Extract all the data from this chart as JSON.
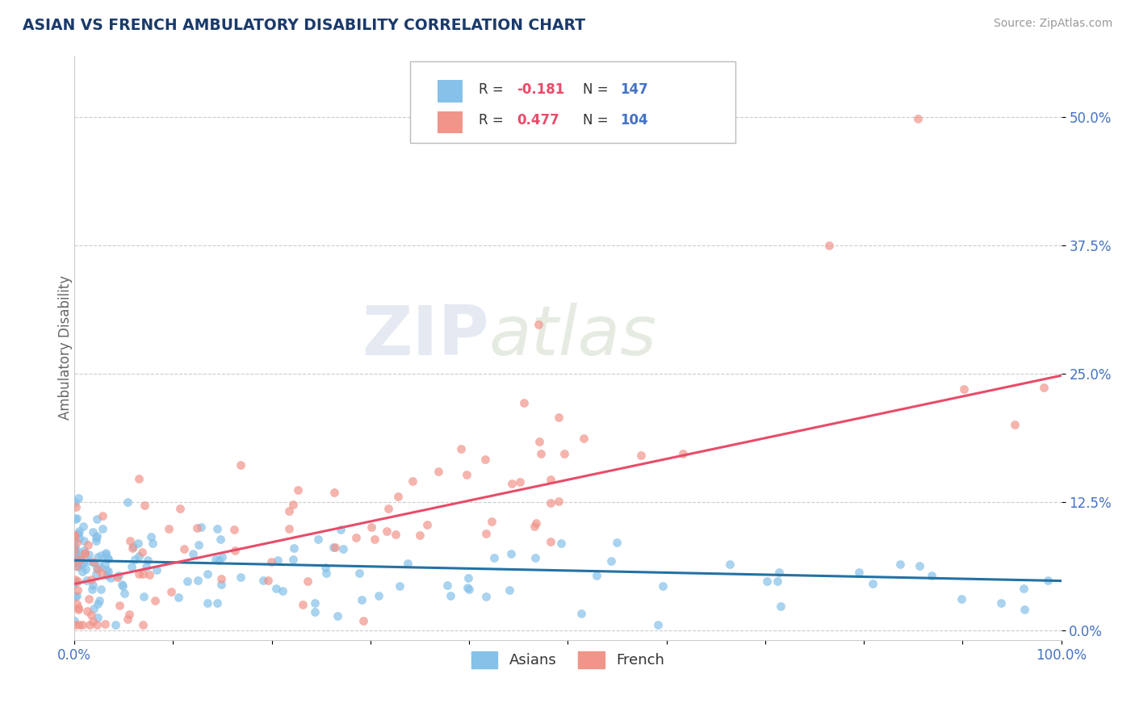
{
  "title": "ASIAN VS FRENCH AMBULATORY DISABILITY CORRELATION CHART",
  "source": "Source: ZipAtlas.com",
  "ylabel": "Ambulatory Disability",
  "asian_R": -0.181,
  "asian_N": 147,
  "french_R": 0.477,
  "french_N": 104,
  "asian_color": "#85C1E9",
  "french_color": "#F1948A",
  "asian_line_color": "#2471A3",
  "french_line_color": "#E74C6A",
  "title_color": "#1A3A6B",
  "source_color": "#999999",
  "background_color": "#FFFFFF",
  "grid_color": "#CCCCCC",
  "xlim": [
    0.0,
    1.0
  ],
  "ylim": [
    -0.01,
    0.56
  ],
  "yticks": [
    0.0,
    0.125,
    0.25,
    0.375,
    0.5
  ],
  "ytick_labels": [
    "0.0%",
    "12.5%",
    "25.0%",
    "37.5%",
    "50.0%"
  ],
  "xticks": [
    0.0,
    0.1,
    0.2,
    0.3,
    0.4,
    0.5,
    0.6,
    0.7,
    0.8,
    0.9,
    1.0
  ],
  "xtick_labels": [
    "0.0%",
    "",
    "",
    "",
    "",
    "",
    "",
    "",
    "",
    "",
    "100.0%"
  ],
  "watermark_zip": "ZIP",
  "watermark_atlas": "atlas",
  "legend_r1_text": "R = -0.181",
  "legend_n1_text": "N = 147",
  "legend_r2_text": "R = 0.477",
  "legend_n2_text": "N = 104",
  "legend_color_r": "#333333",
  "legend_color_n": "#4472C4",
  "asian_label": "Asians",
  "french_label": "French",
  "asian_line_start_y": 0.068,
  "asian_line_end_y": 0.048,
  "french_line_start_y": 0.045,
  "french_line_end_y": 0.248
}
